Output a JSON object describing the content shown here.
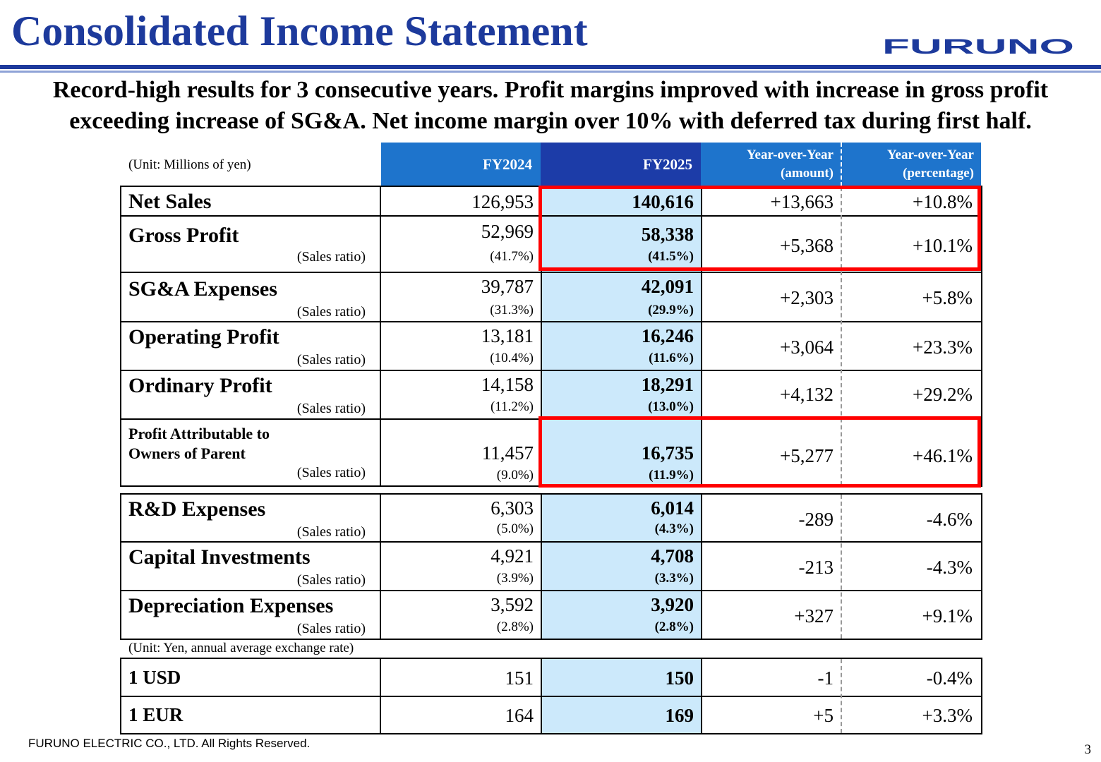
{
  "title": "Consolidated Income Statement",
  "logo_text": "FURUNO",
  "subtitle_line1": "Record-high results for 3 consecutive years. Profit margins improved with increase in gross profit",
  "subtitle_line2": "exceeding increase of SG&A. Net income margin over 10% with deferred tax during first half.",
  "unit_main": "(Unit: Millions of yen)",
  "unit_fx": "(Unit: Yen, annual average exchange rate)",
  "headers": {
    "fy2024": "FY2024",
    "fy2025": "FY2025",
    "yoy_amount": [
      "Year-over-Year",
      "(amount)"
    ],
    "yoy_pct": [
      "Year-over-Year",
      "(percentage)"
    ]
  },
  "ratio_label": "(Sales ratio)",
  "rows": [
    {
      "label": "Net Sales",
      "fy2024": "126,953",
      "fy2025": "140,616",
      "yoy_amount": "+13,663",
      "yoy_pct": "+10.8%"
    },
    {
      "label": "Gross Profit",
      "fy2024": "52,969",
      "fy2024_ratio": "(41.7%)",
      "fy2025": "58,338",
      "fy2025_ratio": "(41.5%)",
      "yoy_amount": "+5,368",
      "yoy_pct": "+10.1%"
    },
    {
      "label": "SG&A Expenses",
      "fy2024": "39,787",
      "fy2024_ratio": "(31.3%)",
      "fy2025": "42,091",
      "fy2025_ratio": "(29.9%)",
      "yoy_amount": "+2,303",
      "yoy_pct": "+5.8%"
    },
    {
      "label": "Operating Profit",
      "fy2024": "13,181",
      "fy2024_ratio": "(10.4%)",
      "fy2025": "16,246",
      "fy2025_ratio": "(11.6%)",
      "yoy_amount": "+3,064",
      "yoy_pct": "+23.3%"
    },
    {
      "label": "Ordinary Profit",
      "fy2024": "14,158",
      "fy2024_ratio": "(11.2%)",
      "fy2025": "18,291",
      "fy2025_ratio": "(13.0%)",
      "yoy_amount": "+4,132",
      "yoy_pct": "+29.2%"
    },
    {
      "label_line1": "Profit Attributable to",
      "label_line2": "Owners of Parent",
      "fy2024": "11,457",
      "fy2024_ratio": "(9.0%)",
      "fy2025": "16,735",
      "fy2025_ratio": "(11.9%)",
      "yoy_amount": "+5,277",
      "yoy_pct": "+46.1%"
    }
  ],
  "rows2": [
    {
      "label": "R&D Expenses",
      "fy2024": "6,303",
      "fy2024_ratio": "(5.0%)",
      "fy2025": "6,014",
      "fy2025_ratio": "(4.3%)",
      "yoy_amount": "-289",
      "yoy_pct": "-4.6%"
    },
    {
      "label": "Capital Investments",
      "fy2024": "4,921",
      "fy2024_ratio": "(3.9%)",
      "fy2025": "4,708",
      "fy2025_ratio": "(3.3%)",
      "yoy_amount": "-213",
      "yoy_pct": "-4.3%"
    },
    {
      "label": "Depreciation Expenses",
      "fy2024": "3,592",
      "fy2024_ratio": "(2.8%)",
      "fy2025": "3,920",
      "fy2025_ratio": "(2.8%)",
      "yoy_amount": "+327",
      "yoy_pct": "+9.1%"
    }
  ],
  "fx_rows": [
    {
      "label": "1 USD",
      "fy2024": "151",
      "fy2025": "150",
      "yoy_amount": "-1",
      "yoy_pct": "-0.4%"
    },
    {
      "label": "1 EUR",
      "fy2024": "164",
      "fy2025": "169",
      "yoy_amount": "+5",
      "yoy_pct": "+3.3%"
    }
  ],
  "footer": "FURUNO ELECTRIC CO., LTD. All Rights Reserved.",
  "page_number": "3",
  "colors": {
    "title": "#1d3a9c",
    "header_light": "#1e74cc",
    "header_dark": "#1c3ca8",
    "highlight": "#cce9fb",
    "emphasis_box": "#ff0000"
  }
}
